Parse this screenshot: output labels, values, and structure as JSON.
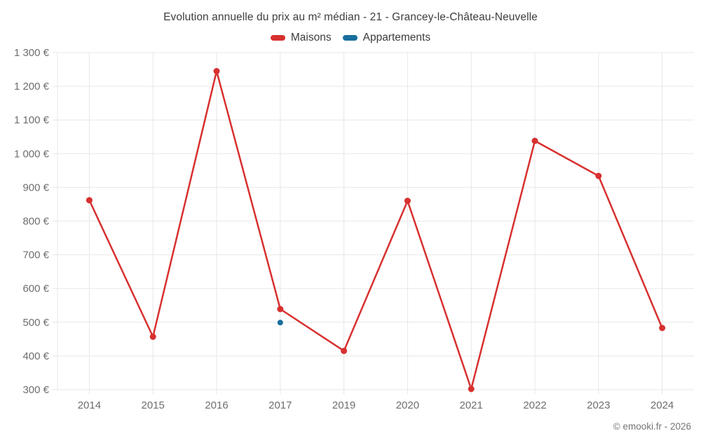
{
  "copyright": "© emooki.fr - 2026",
  "chart_data": {
    "type": "line",
    "title": "Evolution annuelle du prix au m² médian - 21 - Grancey-le-Château-Neuvelle",
    "categories": [
      "2014",
      "2015",
      "2016",
      "2017",
      "2019",
      "2020",
      "2021",
      "2022",
      "2023",
      "2024"
    ],
    "series": [
      {
        "name": "Maisons",
        "color": "#d7302f",
        "marker_radius": 4.5,
        "values": [
          862,
          457,
          1245,
          539,
          415,
          860,
          302,
          1038,
          934,
          483
        ]
      },
      {
        "name": "Appartements",
        "color": "#176e9c",
        "marker_radius": 4,
        "values": [
          null,
          null,
          null,
          499,
          null,
          null,
          null,
          null,
          null,
          null
        ]
      }
    ],
    "xlabel": "",
    "ylabel": "",
    "ylim": [
      300,
      1300
    ],
    "yticks": [
      300,
      400,
      500,
      600,
      700,
      800,
      900,
      1000,
      1100,
      1200,
      1300
    ],
    "ytick_labels": [
      "300 €",
      "400 €",
      "500 €",
      "600 €",
      "700 €",
      "800 €",
      "900 €",
      "1 000 €",
      "1 100 €",
      "1 200 €",
      "1 300 €"
    ],
    "grid": true,
    "legend_position": "top",
    "colors": {
      "grid": "#e7e7e7",
      "tick_text": "#6e6e6e",
      "title_text": "#3d3d3d"
    }
  }
}
